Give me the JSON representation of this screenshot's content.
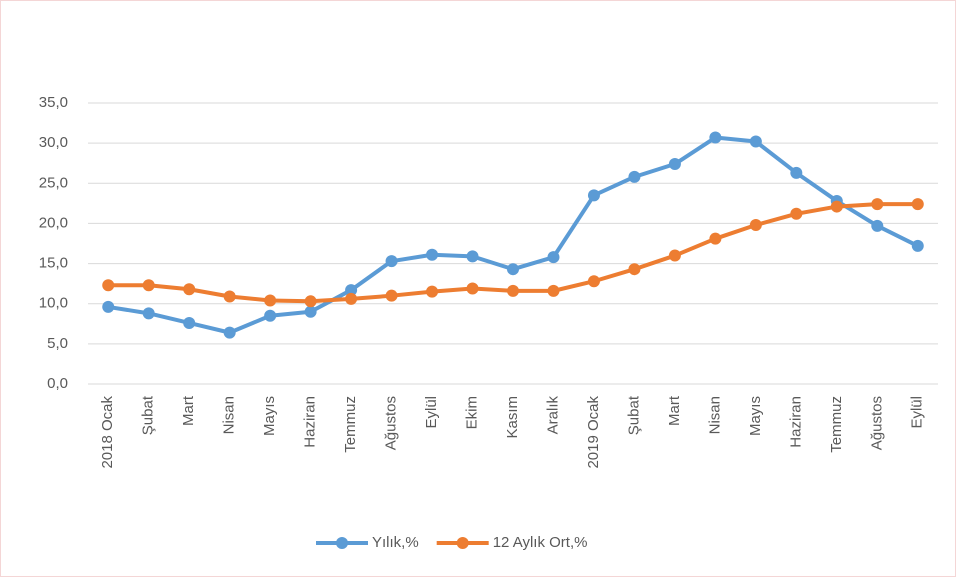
{
  "chart_data": {
    "type": "line",
    "categories": [
      "2018 Ocak",
      "Şubat",
      "Mart",
      "Nisan",
      "Mayıs",
      "Haziran",
      "Temmuz",
      "Ağustos",
      "Eylül",
      "Ekim",
      "Kasım",
      "Aralık",
      "2019 Ocak",
      "Şubat",
      "Mart",
      "Nisan",
      "Mayıs",
      "Haziran",
      "Temmuz",
      "Ağustos",
      "Eylül"
    ],
    "series": [
      {
        "name": "Yılık,%",
        "color": "#5b9bd5",
        "values": [
          9.6,
          8.8,
          7.6,
          6.4,
          8.5,
          9.0,
          11.7,
          15.3,
          16.1,
          15.9,
          14.3,
          15.8,
          23.5,
          25.8,
          27.4,
          30.7,
          30.2,
          26.3,
          22.8,
          19.7,
          17.2
        ]
      },
      {
        "name": "12 Aylık Ort,%",
        "color": "#ed7d31",
        "values": [
          12.3,
          12.3,
          11.8,
          10.9,
          10.4,
          10.3,
          10.6,
          11.0,
          11.5,
          11.9,
          11.6,
          11.6,
          12.8,
          14.3,
          16.0,
          18.1,
          19.8,
          21.2,
          22.1,
          22.4,
          22.4
        ]
      }
    ],
    "ylim": [
      0,
      35
    ],
    "yticks": [
      {
        "value": 0,
        "label": "0,0"
      },
      {
        "value": 5,
        "label": "5,0"
      },
      {
        "value": 10,
        "label": "10,0"
      },
      {
        "value": 15,
        "label": "15,0"
      },
      {
        "value": 20,
        "label": "20,0"
      },
      {
        "value": 25,
        "label": "25,0"
      },
      {
        "value": 30,
        "label": "30,0"
      },
      {
        "value": 35,
        "label": "35,0"
      }
    ],
    "grid": true,
    "legend": "bottom"
  }
}
